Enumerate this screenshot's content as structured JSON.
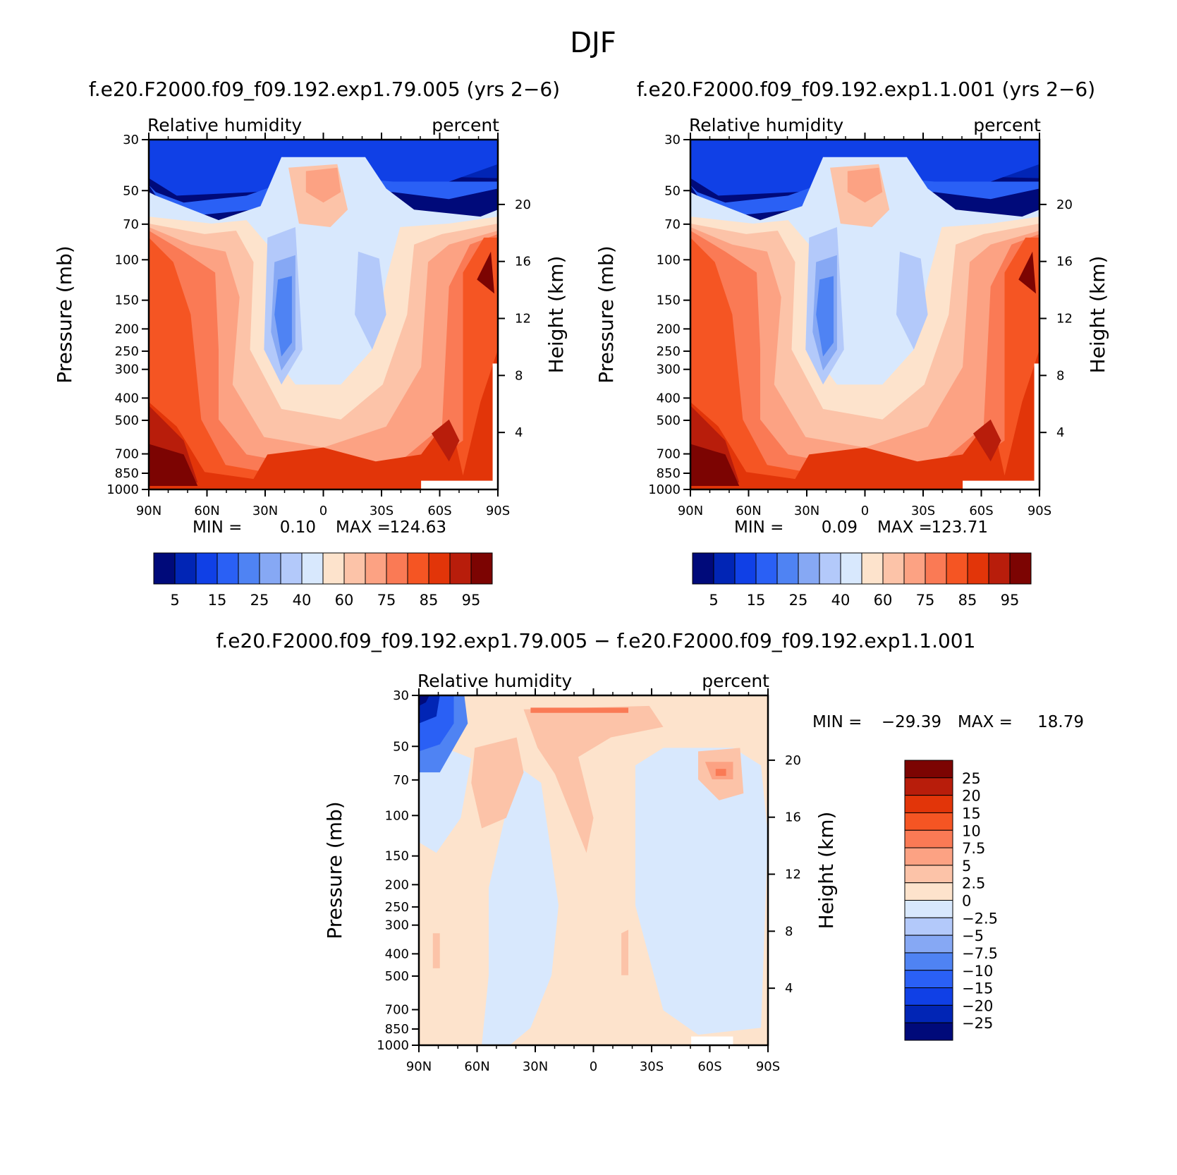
{
  "figure": {
    "title": "DJF"
  },
  "chart_data": [
    {
      "type": "heatmap",
      "title": "f.e20.F2000.f09_f09.192.exp1.79.005 (yrs 2−6)",
      "variable": "Relative humidity",
      "units": "percent",
      "ylabel": "Pressure (mb)",
      "ylabel_right": "Height (km)",
      "x_ticks": [
        "90N",
        "60N",
        "30N",
        "0",
        "30S",
        "60S",
        "90S"
      ],
      "xlim": [
        90,
        -90
      ],
      "y_ticks": [
        "30",
        "50",
        "70",
        "100",
        "150",
        "200",
        "250",
        "300",
        "400",
        "500",
        "700",
        "850",
        "1000"
      ],
      "y_ticks_right": [
        "20",
        "16",
        "12",
        "8",
        "4"
      ],
      "ylim": [
        1000,
        30
      ],
      "y_scale": "log",
      "stats": {
        "min_label": "MIN =",
        "min": "0.10",
        "max_label": "MAX =",
        "max": "124.63"
      },
      "colorbar": {
        "orientation": "horizontal",
        "labels": [
          "5",
          "15",
          "25",
          "40",
          "60",
          "75",
          "85",
          "95"
        ],
        "colors": [
          "#000a7a",
          "#0125b5",
          "#1040e6",
          "#2a60f5",
          "#4f83f3",
          "#86a8f4",
          "#b3c9fa",
          "#d8e8fd",
          "#fde3cc",
          "#fcc3a8",
          "#fca283",
          "#fa7a55",
          "#f55523",
          "#e23509",
          "#b81d0b",
          "#7c0402"
        ]
      }
    },
    {
      "type": "heatmap",
      "title": "f.e20.F2000.f09_f09.192.exp1.1.001 (yrs 2−6)",
      "variable": "Relative humidity",
      "units": "percent",
      "ylabel": "Pressure (mb)",
      "ylabel_right": "Height (km)",
      "x_ticks": [
        "90N",
        "60N",
        "30N",
        "0",
        "30S",
        "60S",
        "90S"
      ],
      "xlim": [
        90,
        -90
      ],
      "y_ticks": [
        "30",
        "50",
        "70",
        "100",
        "150",
        "200",
        "250",
        "300",
        "400",
        "500",
        "700",
        "850",
        "1000"
      ],
      "y_ticks_right": [
        "20",
        "16",
        "12",
        "8",
        "4"
      ],
      "ylim": [
        1000,
        30
      ],
      "y_scale": "log",
      "stats": {
        "min_label": "MIN =",
        "min": "0.09",
        "max_label": "MAX =",
        "max": "123.71"
      },
      "colorbar": {
        "orientation": "horizontal",
        "labels": [
          "5",
          "15",
          "25",
          "40",
          "60",
          "75",
          "85",
          "95"
        ],
        "colors": [
          "#000a7a",
          "#0125b5",
          "#1040e6",
          "#2a60f5",
          "#4f83f3",
          "#86a8f4",
          "#b3c9fa",
          "#d8e8fd",
          "#fde3cc",
          "#fcc3a8",
          "#fca283",
          "#fa7a55",
          "#f55523",
          "#e23509",
          "#b81d0b",
          "#7c0402"
        ]
      }
    },
    {
      "type": "heatmap",
      "title": "f.e20.F2000.f09_f09.192.exp1.79.005 − f.e20.F2000.f09_f09.192.exp1.1.001",
      "variable": "Relative humidity",
      "units": "percent",
      "ylabel": "Pressure (mb)",
      "ylabel_right": "Height (km)",
      "x_ticks": [
        "90N",
        "60N",
        "30N",
        "0",
        "30S",
        "60S",
        "90S"
      ],
      "xlim": [
        90,
        -90
      ],
      "y_ticks": [
        "30",
        "50",
        "70",
        "100",
        "150",
        "200",
        "250",
        "300",
        "400",
        "500",
        "700",
        "850",
        "1000"
      ],
      "y_ticks_right": [
        "20",
        "16",
        "12",
        "8",
        "4"
      ],
      "ylim": [
        1000,
        30
      ],
      "y_scale": "log",
      "stats": {
        "min_label": "MIN =",
        "min": "−29.39",
        "max_label": "MAX =",
        "max": "18.79"
      },
      "colorbar": {
        "orientation": "vertical",
        "labels": [
          "25",
          "20",
          "15",
          "10",
          "7.5",
          "5",
          "2.5",
          "0",
          "−2.5",
          "−5",
          "−7.5",
          "−10",
          "−15",
          "−20",
          "−25"
        ],
        "colors": [
          "#7c0402",
          "#b81d0b",
          "#e23509",
          "#f55523",
          "#fa7a55",
          "#fca283",
          "#fcc3a8",
          "#fde3cc",
          "#d8e8fd",
          "#b3c9fa",
          "#86a8f4",
          "#4f83f3",
          "#2a60f5",
          "#1040e6",
          "#0125b5",
          "#000a7a"
        ]
      }
    }
  ]
}
